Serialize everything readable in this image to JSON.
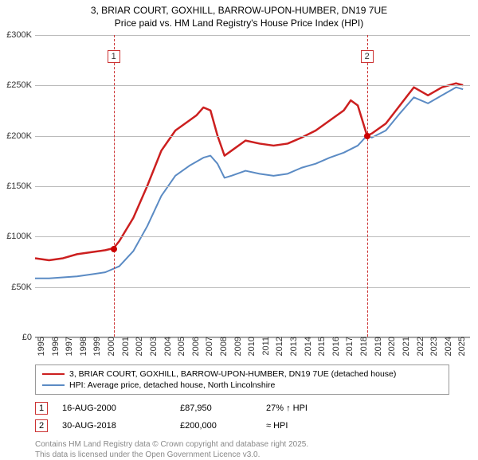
{
  "titles": {
    "line1": "3, BRIAR COURT, GOXHILL, BARROW-UPON-HUMBER, DN19 7UE",
    "line2": "Price paid vs. HM Land Registry's House Price Index (HPI)"
  },
  "chart": {
    "type": "line",
    "background_color": "#ffffff",
    "grid_color": "#bbbbbb",
    "tick_fontsize": 11,
    "xlim": [
      1995,
      2026
    ],
    "ylim": [
      0,
      300000
    ],
    "y_ticks": [
      0,
      50000,
      100000,
      150000,
      200000,
      250000,
      300000
    ],
    "y_tick_labels": [
      "£0",
      "£50K",
      "£100K",
      "£150K",
      "£200K",
      "£250K",
      "£300K"
    ],
    "x_ticks": [
      1995,
      1996,
      1997,
      1998,
      1999,
      2000,
      2001,
      2002,
      2003,
      2004,
      2005,
      2006,
      2007,
      2008,
      2009,
      2010,
      2011,
      2012,
      2013,
      2014,
      2015,
      2016,
      2017,
      2018,
      2019,
      2020,
      2021,
      2022,
      2023,
      2024,
      2025
    ],
    "series": [
      {
        "name": "price_paid",
        "label": "3, BRIAR COURT, GOXHILL, BARROW-UPON-HUMBER, DN19 7UE (detached house)",
        "color": "#cc1f1f",
        "line_width": 2.5,
        "data": [
          [
            1995,
            78000
          ],
          [
            1996,
            76000
          ],
          [
            1997,
            78000
          ],
          [
            1998,
            82000
          ],
          [
            1999,
            84000
          ],
          [
            2000,
            86000
          ],
          [
            2000.6,
            87950
          ],
          [
            2001,
            95000
          ],
          [
            2002,
            118000
          ],
          [
            2003,
            150000
          ],
          [
            2004,
            185000
          ],
          [
            2005,
            205000
          ],
          [
            2006,
            215000
          ],
          [
            2006.5,
            220000
          ],
          [
            2007,
            228000
          ],
          [
            2007.5,
            225000
          ],
          [
            2008,
            200000
          ],
          [
            2008.5,
            180000
          ],
          [
            2009,
            185000
          ],
          [
            2010,
            195000
          ],
          [
            2011,
            192000
          ],
          [
            2012,
            190000
          ],
          [
            2013,
            192000
          ],
          [
            2014,
            198000
          ],
          [
            2015,
            205000
          ],
          [
            2016,
            215000
          ],
          [
            2017,
            225000
          ],
          [
            2017.5,
            235000
          ],
          [
            2018,
            230000
          ],
          [
            2018.66,
            200000
          ],
          [
            2019,
            202000
          ],
          [
            2020,
            212000
          ],
          [
            2021,
            230000
          ],
          [
            2022,
            248000
          ],
          [
            2023,
            240000
          ],
          [
            2024,
            248000
          ],
          [
            2025,
            252000
          ],
          [
            2025.5,
            250000
          ]
        ]
      },
      {
        "name": "hpi",
        "label": "HPI: Average price, detached house, North Lincolnshire",
        "color": "#5b8bc4",
        "line_width": 2,
        "data": [
          [
            1995,
            58000
          ],
          [
            1996,
            58000
          ],
          [
            1997,
            59000
          ],
          [
            1998,
            60000
          ],
          [
            1999,
            62000
          ],
          [
            2000,
            64000
          ],
          [
            2001,
            70000
          ],
          [
            2002,
            85000
          ],
          [
            2003,
            110000
          ],
          [
            2004,
            140000
          ],
          [
            2005,
            160000
          ],
          [
            2006,
            170000
          ],
          [
            2007,
            178000
          ],
          [
            2007.5,
            180000
          ],
          [
            2008,
            172000
          ],
          [
            2008.5,
            158000
          ],
          [
            2009,
            160000
          ],
          [
            2010,
            165000
          ],
          [
            2011,
            162000
          ],
          [
            2012,
            160000
          ],
          [
            2013,
            162000
          ],
          [
            2014,
            168000
          ],
          [
            2015,
            172000
          ],
          [
            2016,
            178000
          ],
          [
            2017,
            183000
          ],
          [
            2018,
            190000
          ],
          [
            2018.66,
            200000
          ],
          [
            2019,
            198000
          ],
          [
            2020,
            205000
          ],
          [
            2021,
            222000
          ],
          [
            2022,
            238000
          ],
          [
            2023,
            232000
          ],
          [
            2024,
            240000
          ],
          [
            2025,
            248000
          ],
          [
            2025.5,
            246000
          ]
        ]
      }
    ],
    "vlines": [
      {
        "x": 2000.6,
        "color": "#cc3333",
        "dash": "4,3"
      },
      {
        "x": 2018.66,
        "color": "#cc3333",
        "dash": "4,3"
      }
    ],
    "event_markers": [
      {
        "n": "1",
        "x": 2000.6,
        "box_y": 0.05
      },
      {
        "n": "2",
        "x": 2018.66,
        "box_y": 0.05
      }
    ],
    "sale_points": [
      {
        "x": 2000.6,
        "y": 87950,
        "color": "#cc0000"
      },
      {
        "x": 2018.66,
        "y": 200000,
        "color": "#cc0000"
      }
    ]
  },
  "legend": {
    "rows": [
      {
        "color": "#cc1f1f",
        "label": "3, BRIAR COURT, GOXHILL, BARROW-UPON-HUMBER, DN19 7UE (detached house)"
      },
      {
        "color": "#5b8bc4",
        "label": "HPI: Average price, detached house, North Lincolnshire"
      }
    ]
  },
  "events": [
    {
      "n": "1",
      "date": "16-AUG-2000",
      "price": "£87,950",
      "note": "27% ↑ HPI"
    },
    {
      "n": "2",
      "date": "30-AUG-2018",
      "price": "£200,000",
      "note": "≈ HPI"
    }
  ],
  "attribution": {
    "line1": "Contains HM Land Registry data © Crown copyright and database right 2025.",
    "line2": "This data is licensed under the Open Government Licence v3.0."
  }
}
